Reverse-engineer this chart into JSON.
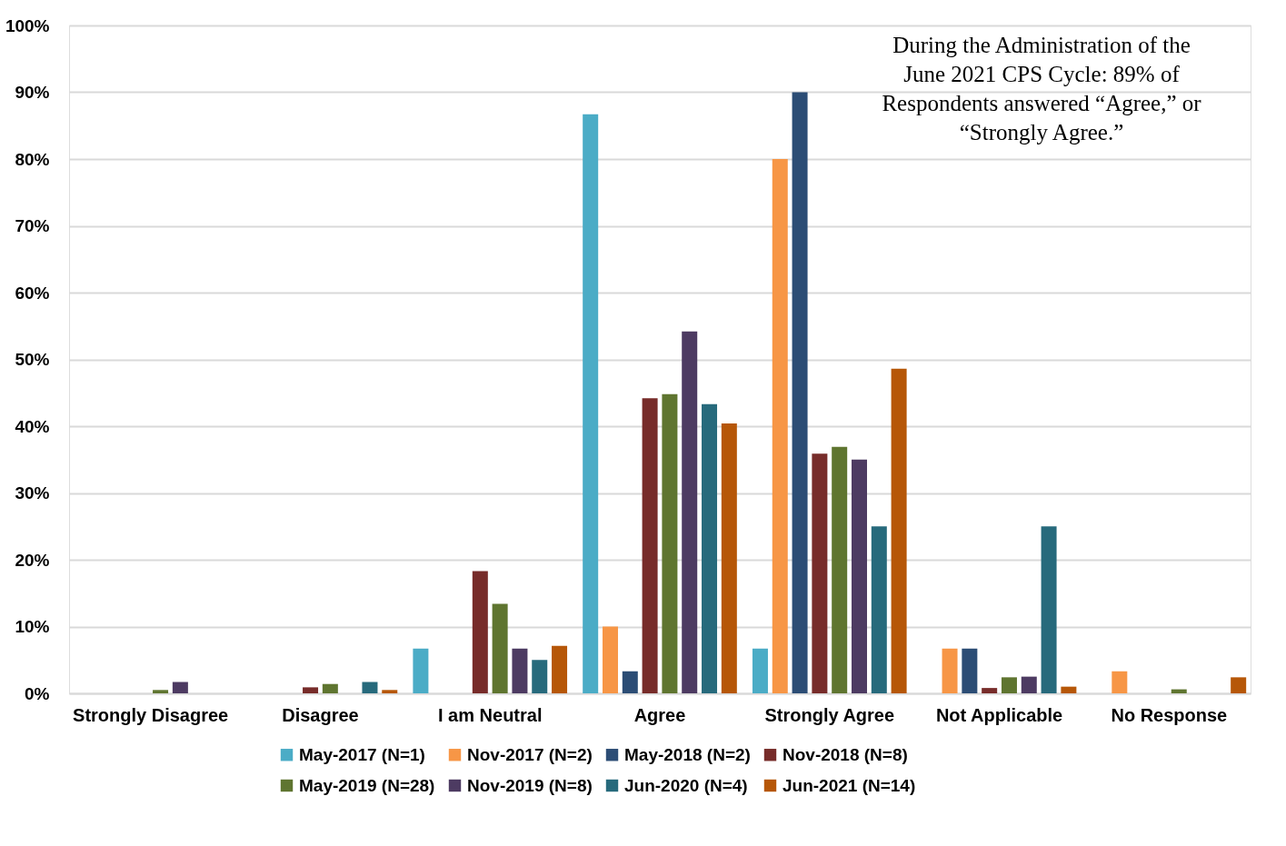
{
  "chart_data": {
    "type": "bar",
    "categories": [
      "Strongly Disagree",
      "Disagree",
      "I am Neutral",
      "Agree",
      "Strongly Agree",
      "Not Applicable",
      "No Response"
    ],
    "series": [
      {
        "name": "May-2017 (N=1)",
        "color": "#4bacc6",
        "values": [
          0,
          0,
          6.7,
          86.7,
          6.7,
          0,
          0
        ]
      },
      {
        "name": "Nov-2017 (N=2)",
        "color": "#f79646",
        "values": [
          0,
          0,
          0,
          10,
          80,
          6.7,
          3.3
        ]
      },
      {
        "name": "May-2018 (N=2)",
        "color": "#2c4d75",
        "values": [
          0,
          0,
          0,
          3.3,
          90,
          6.7,
          0
        ]
      },
      {
        "name": "Nov-2018 (N=8)",
        "color": "#772c2a",
        "values": [
          0,
          0.9,
          18.3,
          44.2,
          35.9,
          0.8,
          0
        ]
      },
      {
        "name": "May-2019 (N=28)",
        "color": "#5f7530",
        "values": [
          0.5,
          1.4,
          13.4,
          44.8,
          36.9,
          2.4,
          0.6
        ]
      },
      {
        "name": "Nov-2019 (N=8)",
        "color": "#4d3b62",
        "values": [
          1.7,
          0,
          6.7,
          54.2,
          35,
          2.5,
          0
        ]
      },
      {
        "name": "Jun-2020 (N=4)",
        "color": "#276a7c",
        "values": [
          0,
          1.7,
          5,
          43.3,
          25,
          25,
          0
        ]
      },
      {
        "name": "Jun-2021 (N=14)",
        "color": "#b65708",
        "values": [
          0,
          0.5,
          7.1,
          40.4,
          48.6,
          1,
          2.4
        ]
      }
    ],
    "ylim": [
      0,
      100
    ],
    "yticks": [
      {
        "value": 0,
        "label": "0%"
      },
      {
        "value": 10,
        "label": "10%"
      },
      {
        "value": 20,
        "label": "20%"
      },
      {
        "value": 30,
        "label": "30%"
      },
      {
        "value": 40,
        "label": "40%"
      },
      {
        "value": 50,
        "label": "50%"
      },
      {
        "value": 60,
        "label": "60%"
      },
      {
        "value": 70,
        "label": "70%"
      },
      {
        "value": 80,
        "label": "80%"
      },
      {
        "value": 90,
        "label": "90%"
      },
      {
        "value": 100,
        "label": "100%"
      }
    ],
    "grid": "y",
    "legend": "bottom",
    "annotations": [
      "During the Administration of the June 2021 CPS Cycle: 89% of Respondents answered “Agree,” or “Strongly Agree.”"
    ]
  }
}
